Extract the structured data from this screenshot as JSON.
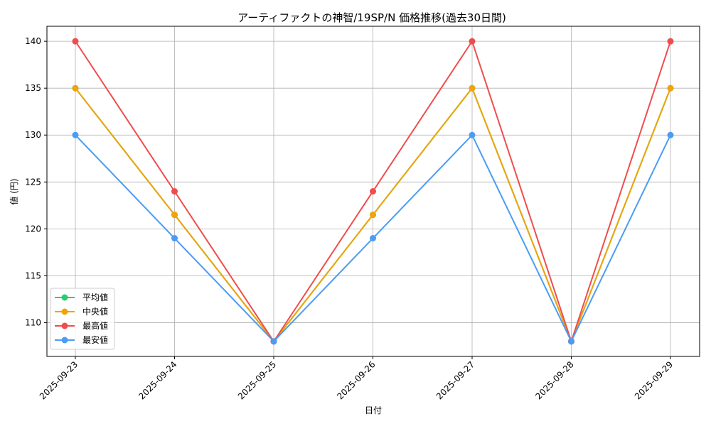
{
  "chart_data": {
    "type": "line",
    "title": "アーティファクトの神智/19SP/N 価格推移(過去30日間)",
    "xlabel": "日付",
    "ylabel": "値 (円)",
    "categories": [
      "2025-09-23",
      "2025-09-24",
      "2025-09-25",
      "2025-09-26",
      "2025-09-27",
      "2025-09-28",
      "2025-09-29"
    ],
    "ylim": [
      106.4,
      141.6
    ],
    "yticks": [
      110,
      115,
      120,
      125,
      130,
      135,
      140
    ],
    "grid": true,
    "legend_position": "lower-left",
    "series": [
      {
        "name": "平均値",
        "color": "#2ecc71",
        "values": [
          135,
          121.5,
          108,
          121.5,
          135,
          108,
          135
        ]
      },
      {
        "name": "中央値",
        "color": "#f0a30a",
        "values": [
          135,
          121.5,
          108,
          121.5,
          135,
          108,
          135
        ]
      },
      {
        "name": "最高値",
        "color": "#ef4d4d",
        "values": [
          140,
          124,
          108,
          124,
          140,
          108,
          140
        ]
      },
      {
        "name": "最安値",
        "color": "#4a9cf5",
        "values": [
          130,
          119,
          108,
          119,
          130,
          108,
          130
        ]
      }
    ]
  }
}
